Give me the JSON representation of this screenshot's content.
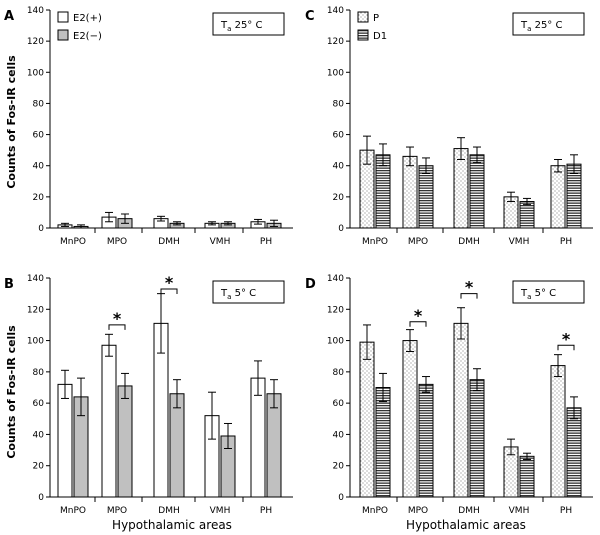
{
  "figure": {
    "y_axis_label": "Counts of Fos-IR cells",
    "x_axis_label": "Hypothalamic areas"
  },
  "chart_data": [
    {
      "panel": "A",
      "type": "bar",
      "condition": {
        "main": "T",
        "sub": "a",
        "rest": " 25° C"
      },
      "ylabel": "Counts of Fos-IR cells",
      "xlabel": "",
      "ylim": [
        0,
        140
      ],
      "yticks": [
        0,
        20,
        40,
        60,
        80,
        100,
        120,
        140
      ],
      "legend_placement": "top-left",
      "categories": [
        "MnPO",
        "MPO",
        "DMH",
        "VMH",
        "PH"
      ],
      "series": [
        {
          "name": "E2(+)",
          "style": "white",
          "values": [
            2,
            7,
            6,
            3,
            4
          ],
          "errors": [
            1,
            3,
            1.5,
            1,
            1.5
          ]
        },
        {
          "name": "E2(−)",
          "style": "gray",
          "values": [
            1,
            6,
            3,
            3,
            3
          ],
          "errors": [
            1,
            3,
            1,
            1,
            2
          ]
        }
      ],
      "significance": []
    },
    {
      "panel": "B",
      "type": "bar",
      "condition": {
        "main": "T",
        "sub": "a",
        "rest": " 5° C"
      },
      "ylabel": "Counts of Fos-IR cells",
      "xlabel": "Hypothalamic areas",
      "ylim": [
        0,
        140
      ],
      "yticks": [
        0,
        20,
        40,
        60,
        80,
        100,
        120,
        140
      ],
      "categories": [
        "MnPO",
        "MPO",
        "DMH",
        "VMH",
        "PH"
      ],
      "series": [
        {
          "name": "E2(+)",
          "style": "white",
          "values": [
            72,
            97,
            111,
            52,
            76
          ],
          "errors": [
            9,
            7,
            19,
            15,
            11
          ]
        },
        {
          "name": "E2(−)",
          "style": "gray",
          "values": [
            64,
            71,
            66,
            39,
            66
          ],
          "errors": [
            12,
            8,
            9,
            8,
            9
          ]
        }
      ],
      "significance": [
        {
          "category": "MPO",
          "label": "*",
          "y": 110
        },
        {
          "category": "DMH",
          "label": "*",
          "y": 133
        }
      ]
    },
    {
      "panel": "C",
      "type": "bar",
      "condition": {
        "main": "T",
        "sub": "a",
        "rest": " 25° C"
      },
      "ylabel": "",
      "xlabel": "",
      "ylim": [
        0,
        140
      ],
      "yticks": [
        0,
        20,
        40,
        60,
        80,
        100,
        120,
        140
      ],
      "legend_placement": "top-left",
      "categories": [
        "MnPO",
        "MPO",
        "DMH",
        "VMH",
        "PH"
      ],
      "series": [
        {
          "name": "P",
          "style": "dotted",
          "values": [
            50,
            46,
            51,
            20,
            40
          ],
          "errors": [
            9,
            6,
            7,
            3,
            4
          ]
        },
        {
          "name": "D1",
          "style": "striped",
          "values": [
            47,
            40,
            47,
            17,
            41
          ],
          "errors": [
            7,
            5,
            5,
            2,
            6
          ]
        }
      ],
      "significance": []
    },
    {
      "panel": "D",
      "type": "bar",
      "condition": {
        "main": "T",
        "sub": "a",
        "rest": " 5° C"
      },
      "ylabel": "",
      "xlabel": "Hypothalamic areas",
      "ylim": [
        0,
        140
      ],
      "yticks": [
        0,
        20,
        40,
        60,
        80,
        100,
        120,
        140
      ],
      "categories": [
        "MnPO",
        "MPO",
        "DMH",
        "VMH",
        "PH"
      ],
      "series": [
        {
          "name": "P",
          "style": "dotted",
          "values": [
            99,
            100,
            111,
            32,
            84
          ],
          "errors": [
            11,
            7,
            10,
            5,
            7
          ]
        },
        {
          "name": "D1",
          "style": "striped",
          "values": [
            70,
            72,
            75,
            26,
            57
          ],
          "errors": [
            9,
            5,
            7,
            2,
            7
          ]
        }
      ],
      "significance": [
        {
          "category": "MPO",
          "label": "*",
          "y": 112
        },
        {
          "category": "DMH",
          "label": "*",
          "y": 130
        },
        {
          "category": "PH",
          "label": "*",
          "y": 97
        }
      ]
    }
  ]
}
